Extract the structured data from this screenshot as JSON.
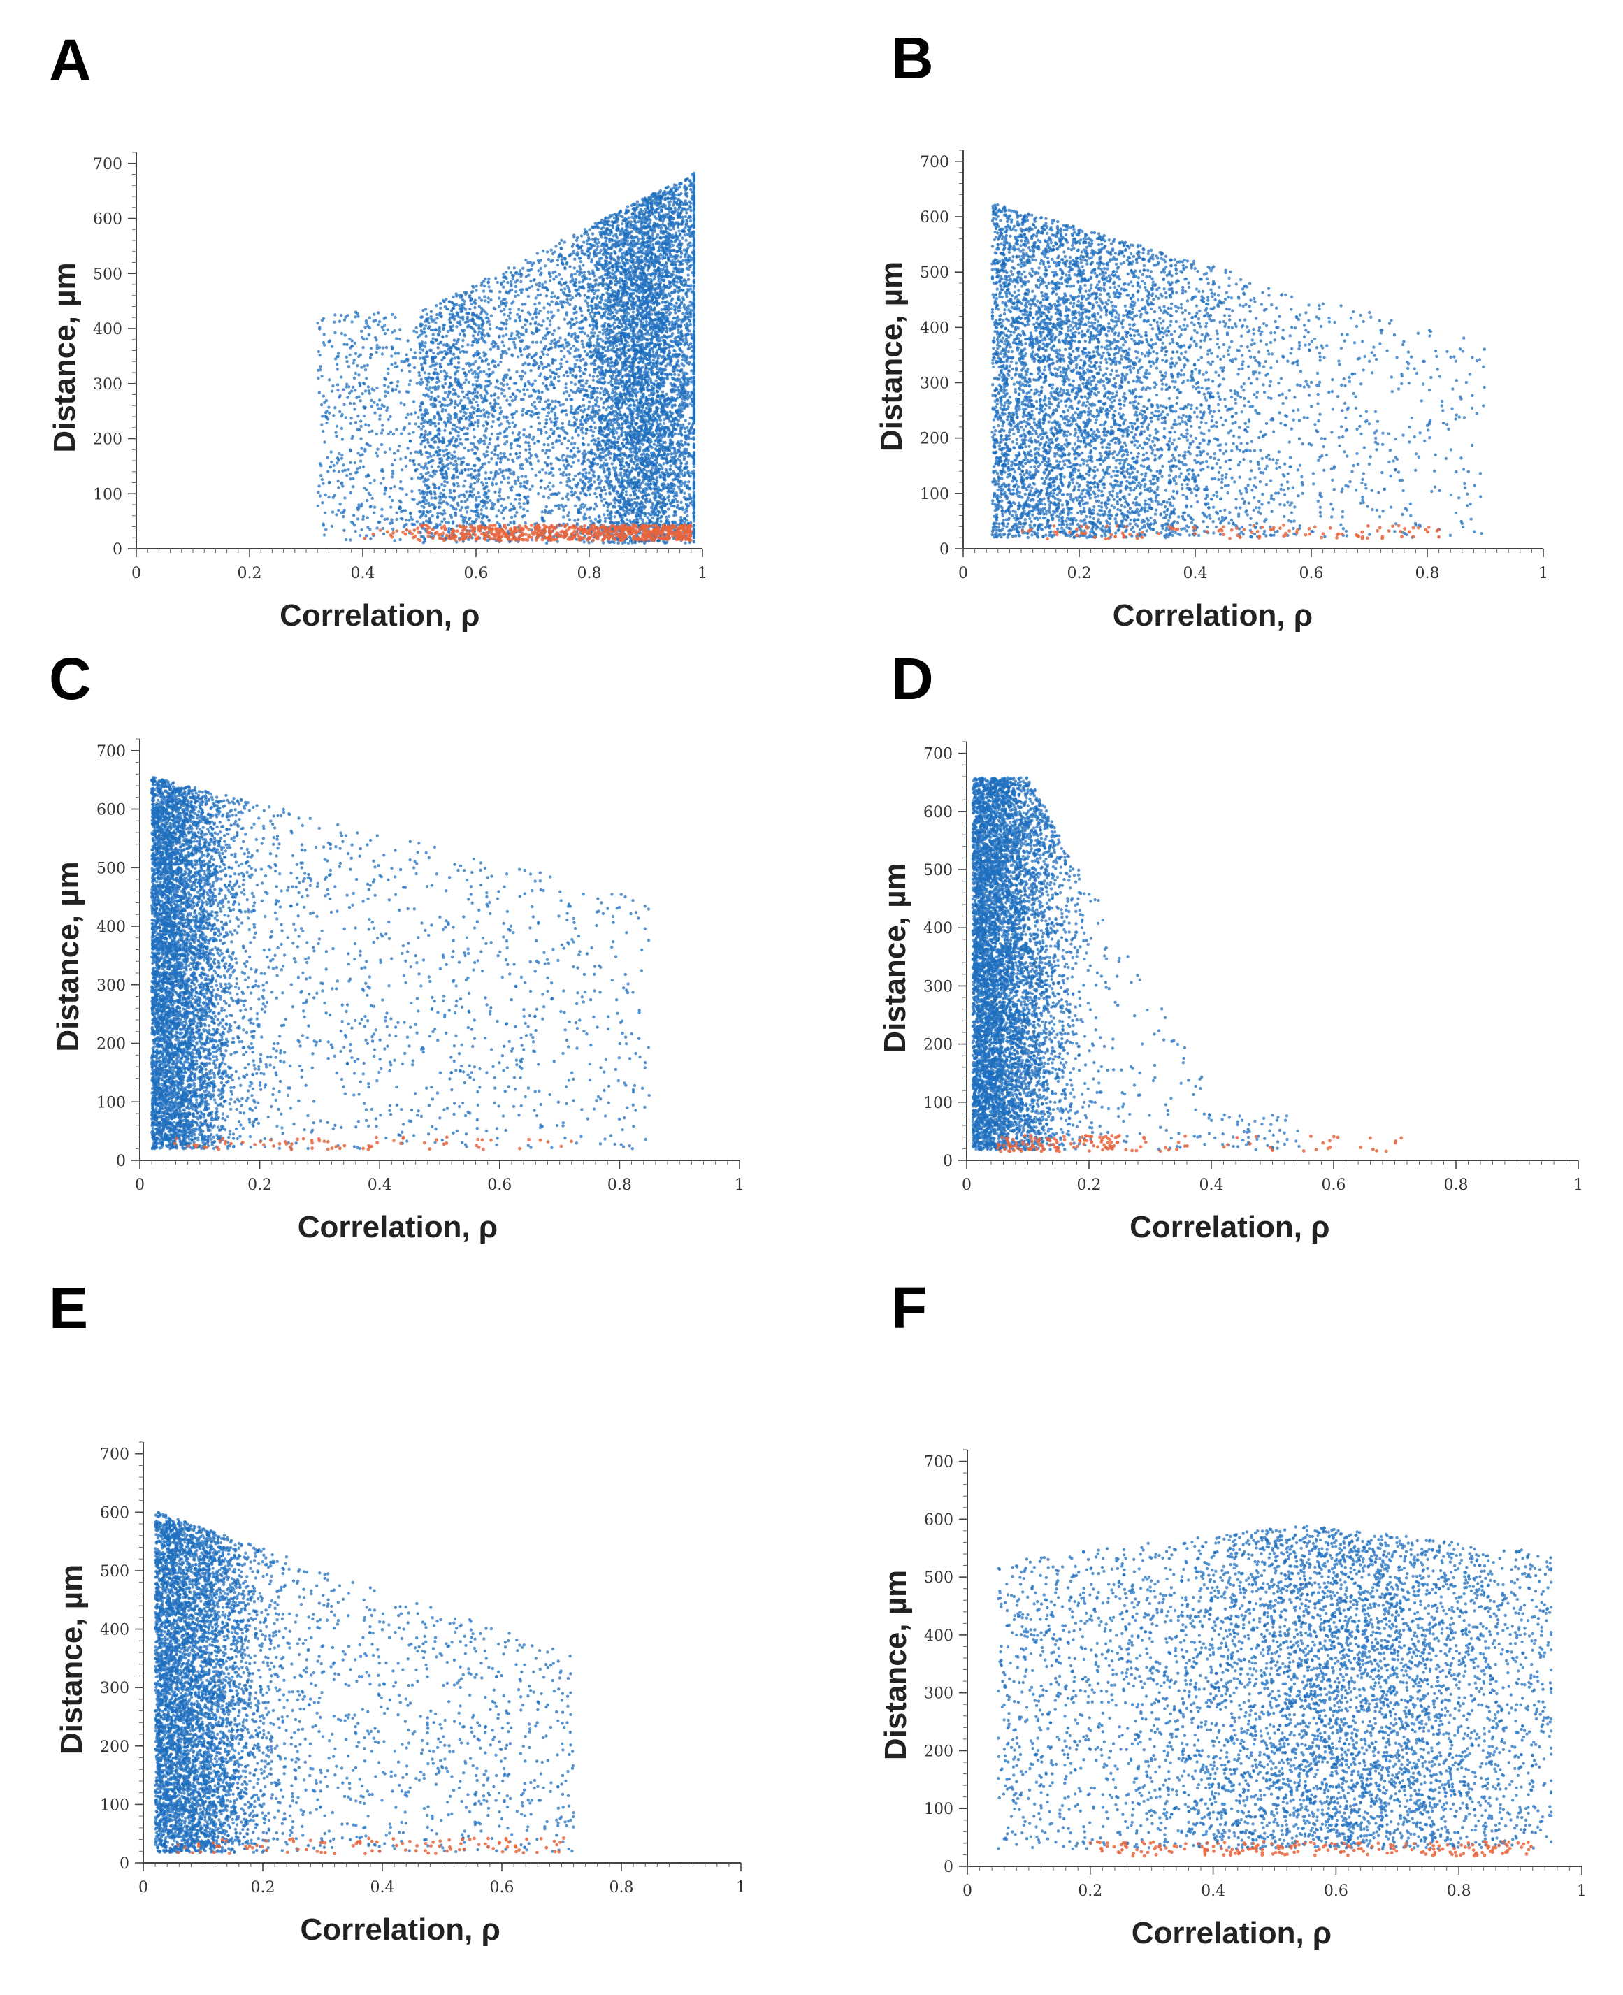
{
  "chart_data": [
    {
      "type": "scatter",
      "panel": "A",
      "xlabel": "Correlation, ρ",
      "ylabel": "Distance, µm",
      "xlim": [
        0,
        1
      ],
      "ylim": [
        0,
        720
      ],
      "xticks": [
        "0",
        "0.2",
        "0.4",
        "0.6",
        "0.8",
        "1"
      ],
      "yticks": [
        "0",
        "100",
        "200",
        "300",
        "400",
        "500",
        "600",
        "700"
      ],
      "grid": false,
      "series": [
        {
          "color": "#1f6fbf",
          "description": "dense cloud rising toward ρ≈0.9–0.98, distances up to ~690 µm",
          "point_count_approx": 60000
        },
        {
          "color": "#e8643c",
          "description": "near pairs, distance ~15–45 µm, ρ 0.4–0.98",
          "point_count_approx": 600
        }
      ]
    },
    {
      "type": "scatter",
      "panel": "B",
      "xlabel": "Correlation, ρ",
      "ylabel": "Distance, µm",
      "xlim": [
        0,
        1
      ],
      "ylim": [
        0,
        720
      ],
      "xticks": [
        "0",
        "0.2",
        "0.4",
        "0.6",
        "0.8",
        "1"
      ],
      "yticks": [
        "0",
        "100",
        "200",
        "300",
        "400",
        "500",
        "600",
        "700"
      ],
      "grid": false,
      "series": [
        {
          "color": "#1f6fbf",
          "description": "cloud concentrated at ρ 0.05–0.4, sparse to ~0.9",
          "point_count_approx": 18000
        },
        {
          "color": "#e8643c",
          "description": "near pairs, distance ~15–45 µm, ρ 0.1–0.82",
          "point_count_approx": 120
        }
      ]
    },
    {
      "type": "scatter",
      "panel": "C",
      "xlabel": "Correlation, ρ",
      "ylabel": "Distance, µm",
      "xlim": [
        0,
        1
      ],
      "ylim": [
        0,
        720
      ],
      "xticks": [
        "0",
        "0.2",
        "0.4",
        "0.6",
        "0.8",
        "1"
      ],
      "yticks": [
        "0",
        "100",
        "200",
        "300",
        "400",
        "500",
        "600",
        "700"
      ],
      "grid": false,
      "series": [
        {
          "color": "#1f6fbf",
          "description": "dense at ρ 0.02–0.15, sparse tail to ~0.85",
          "point_count_approx": 30000
        },
        {
          "color": "#e8643c",
          "description": "near pairs, distance ~20–40 µm, ρ 0.05–0.72",
          "point_count_approx": 80
        }
      ]
    },
    {
      "type": "scatter",
      "panel": "D",
      "xlabel": "Correlation, ρ",
      "ylabel": "Distance, µm",
      "xlim": [
        0,
        1
      ],
      "ylim": [
        0,
        720
      ],
      "xticks": [
        "0",
        "0.2",
        "0.4",
        "0.6",
        "0.8",
        "1"
      ],
      "yticks": [
        "0",
        "100",
        "200",
        "300",
        "400",
        "500",
        "600",
        "700"
      ],
      "grid": false,
      "series": [
        {
          "color": "#1f6fbf",
          "description": "very dense at ρ 0.01–0.15, few beyond 0.3",
          "point_count_approx": 28000
        },
        {
          "color": "#e8643c",
          "description": "near pairs, distance ~15–45 µm, ρ 0.05–0.75",
          "point_count_approx": 150
        }
      ]
    },
    {
      "type": "scatter",
      "panel": "E",
      "xlabel": "Correlation, ρ",
      "ylabel": "Distance, µm",
      "xlim": [
        0,
        1
      ],
      "ylim": [
        0,
        720
      ],
      "xticks": [
        "0",
        "0.2",
        "0.4",
        "0.6",
        "0.8",
        "1"
      ],
      "yticks": [
        "0",
        "100",
        "200",
        "300",
        "400",
        "500",
        "600",
        "700"
      ],
      "grid": false,
      "series": [
        {
          "color": "#1f6fbf",
          "description": "dense at ρ 0.02–0.2, sparse tail to ~0.72",
          "point_count_approx": 22000
        },
        {
          "color": "#e8643c",
          "description": "near pairs, distance ~15–45 µm, ρ 0.05–0.72",
          "point_count_approx": 100
        }
      ]
    },
    {
      "type": "scatter",
      "panel": "F",
      "xlabel": "Correlation, ρ",
      "ylabel": "Distance, µm",
      "xlim": [
        0,
        1
      ],
      "ylim": [
        0,
        720
      ],
      "xticks": [
        "0",
        "0.2",
        "0.4",
        "0.6",
        "0.8",
        "1"
      ],
      "yticks": [
        "0",
        "100",
        "200",
        "300",
        "400",
        "500",
        "600",
        "700"
      ],
      "grid": false,
      "series": [
        {
          "color": "#1f6fbf",
          "description": "broad cloud ρ 0.05–0.95, denser near 0.5–0.7",
          "point_count_approx": 16000
        },
        {
          "color": "#e8643c",
          "description": "near pairs, distance ~15–45 µm, ρ 0.2–0.93",
          "point_count_approx": 200
        }
      ]
    }
  ]
}
